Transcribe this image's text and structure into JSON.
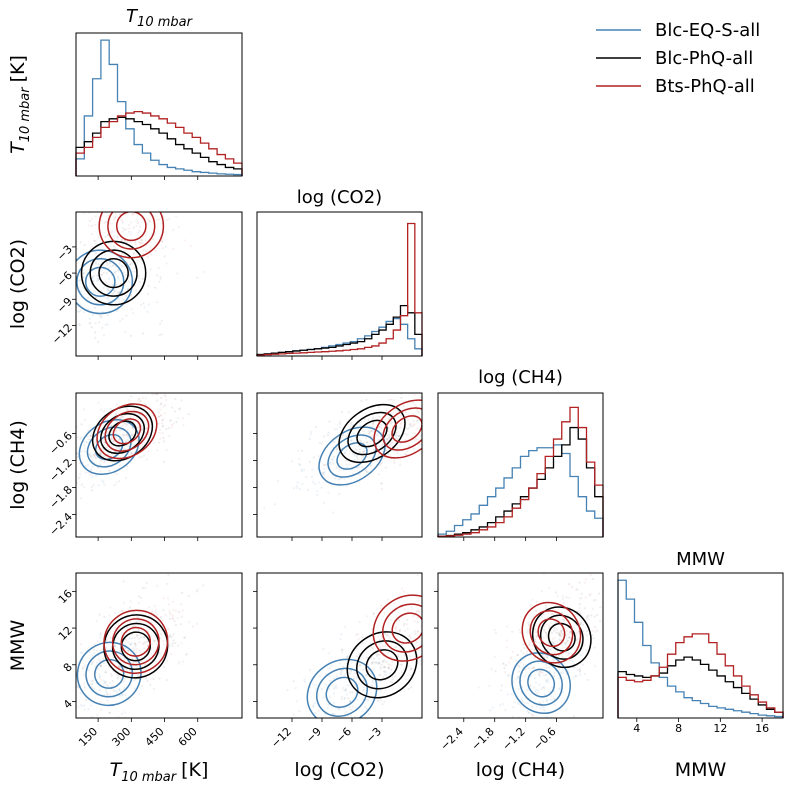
{
  "chart_data": {
    "type": "corner",
    "legend_position": "top-right",
    "series": [
      {
        "name": "Blc-EQ-S-all",
        "color": "#4682b4"
      },
      {
        "name": "Blc-PhQ-all",
        "color": "#000000"
      },
      {
        "name": "Bts-PhQ-all",
        "color": "#b22222"
      }
    ],
    "params": [
      {
        "key": "T",
        "title": "T",
        "sub": "10 mbar",
        "unit": "[K]",
        "range": [
          50,
          800
        ],
        "ticks": [
          150,
          300,
          450,
          600
        ],
        "tick_labels": [
          "150",
          "300",
          "450",
          "600"
        ]
      },
      {
        "key": "co2",
        "title": "log (CO2)",
        "unit": "",
        "range": [
          -15.5,
          1.0
        ],
        "ticks": [
          -12,
          -9,
          -6,
          -3
        ],
        "tick_labels": [
          "−12",
          "−9",
          "−6",
          "−3"
        ]
      },
      {
        "key": "ch4",
        "title": "log (CH4)",
        "unit": "",
        "range": [
          -2.9,
          0.3
        ],
        "ticks": [
          -2.4,
          -1.8,
          -1.2,
          -0.6
        ],
        "tick_labels": [
          "−2.4",
          "−1.8",
          "−1.2",
          "−0.6"
        ]
      },
      {
        "key": "mmw",
        "title": "MMW",
        "unit": "",
        "range": [
          2.2,
          18.0
        ],
        "ticks": [
          4,
          8,
          12,
          16
        ],
        "tick_labels": [
          "4",
          "8",
          "12",
          "16"
        ]
      }
    ],
    "histograms": {
      "T": {
        "Blc-EQ-S-all": [
          0.12,
          0.42,
          0.68,
          0.95,
          0.78,
          0.52,
          0.33,
          0.22,
          0.16,
          0.11,
          0.08,
          0.06,
          0.05,
          0.04,
          0.03,
          0.025,
          0.02,
          0.015,
          0.012,
          0.01
        ],
        "Blc-PhQ-all": [
          0.2,
          0.24,
          0.3,
          0.38,
          0.4,
          0.41,
          0.4,
          0.38,
          0.36,
          0.33,
          0.3,
          0.26,
          0.22,
          0.19,
          0.16,
          0.13,
          0.1,
          0.08,
          0.06,
          0.05
        ],
        "Bts-PhQ-all": [
          0.16,
          0.2,
          0.27,
          0.34,
          0.38,
          0.42,
          0.44,
          0.45,
          0.44,
          0.42,
          0.4,
          0.37,
          0.34,
          0.3,
          0.27,
          0.23,
          0.19,
          0.15,
          0.12,
          0.09
        ]
      },
      "co2": {
        "Blc-EQ-S-all": [
          0.01,
          0.015,
          0.02,
          0.025,
          0.03,
          0.035,
          0.04,
          0.045,
          0.05,
          0.06,
          0.07,
          0.08,
          0.09,
          0.1,
          0.12,
          0.14,
          0.17,
          0.2,
          0.24,
          0.26,
          0.22,
          0.12,
          0.05
        ],
        "Blc-PhQ-all": [
          0.01,
          0.015,
          0.02,
          0.025,
          0.03,
          0.035,
          0.04,
          0.045,
          0.05,
          0.055,
          0.06,
          0.07,
          0.08,
          0.09,
          0.1,
          0.12,
          0.15,
          0.18,
          0.22,
          0.27,
          0.35,
          0.3,
          0.15
        ],
        "Bts-PhQ-all": [
          0.005,
          0.01,
          0.012,
          0.015,
          0.018,
          0.02,
          0.022,
          0.025,
          0.028,
          0.03,
          0.033,
          0.036,
          0.04,
          0.045,
          0.05,
          0.06,
          0.07,
          0.09,
          0.12,
          0.18,
          0.28,
          0.92,
          0.3
        ]
      },
      "ch4": {
        "Blc-EQ-S-all": [
          0.02,
          0.04,
          0.08,
          0.12,
          0.16,
          0.22,
          0.28,
          0.34,
          0.41,
          0.48,
          0.56,
          0.6,
          0.62,
          0.62,
          0.64,
          0.58,
          0.42,
          0.28,
          0.18,
          0.13
        ],
        "Blc-PhQ-all": [
          0.005,
          0.01,
          0.02,
          0.03,
          0.05,
          0.07,
          0.1,
          0.14,
          0.18,
          0.23,
          0.28,
          0.34,
          0.4,
          0.48,
          0.56,
          0.64,
          0.76,
          0.68,
          0.48,
          0.28
        ],
        "Bts-PhQ-all": [
          0.005,
          0.008,
          0.012,
          0.02,
          0.03,
          0.05,
          0.07,
          0.1,
          0.14,
          0.2,
          0.26,
          0.34,
          0.44,
          0.56,
          0.68,
          0.8,
          0.9,
          0.76,
          0.52,
          0.36
        ]
      },
      "mmw": {
        "Blc-EQ-S-all": [
          0.95,
          0.82,
          0.66,
          0.5,
          0.38,
          0.28,
          0.22,
          0.18,
          0.14,
          0.12,
          0.1,
          0.08,
          0.07,
          0.06,
          0.05,
          0.04,
          0.03,
          0.02,
          0.015,
          0.01
        ],
        "Blc-PhQ-all": [
          0.32,
          0.3,
          0.29,
          0.28,
          0.29,
          0.31,
          0.36,
          0.4,
          0.42,
          0.4,
          0.37,
          0.33,
          0.29,
          0.25,
          0.21,
          0.17,
          0.13,
          0.09,
          0.06,
          0.04
        ],
        "Bts-PhQ-all": [
          0.28,
          0.26,
          0.25,
          0.26,
          0.29,
          0.35,
          0.44,
          0.52,
          0.56,
          0.58,
          0.58,
          0.52,
          0.44,
          0.36,
          0.29,
          0.22,
          0.16,
          0.11,
          0.07,
          0.04
        ]
      }
    },
    "contour_centers": {
      "co2|T": {
        "Blc-EQ-S-all": [
          160,
          -7.0
        ],
        "Blc-PhQ-all": [
          220,
          -6.0
        ],
        "Bts-PhQ-all": [
          300,
          -0.6
        ]
      },
      "ch4|T": {
        "Blc-EQ-S-all": [
          200,
          -0.9
        ],
        "Blc-PhQ-all": [
          260,
          -0.6
        ],
        "Bts-PhQ-all": [
          280,
          -0.55
        ]
      },
      "ch4|co2": {
        "Blc-EQ-S-all": [
          -6.0,
          -1.1
        ],
        "Blc-PhQ-all": [
          -4.0,
          -0.6
        ],
        "Bts-PhQ-all": [
          -0.5,
          -0.5
        ]
      },
      "mmw|T": {
        "Blc-EQ-S-all": [
          200,
          7.0
        ],
        "Blc-PhQ-all": [
          320,
          10.0
        ],
        "Bts-PhQ-all": [
          320,
          10.5
        ]
      },
      "mmw|co2": {
        "Blc-EQ-S-all": [
          -7.0,
          5.0
        ],
        "Blc-PhQ-all": [
          -3.0,
          8.0
        ],
        "Bts-PhQ-all": [
          -0.4,
          12.0
        ]
      },
      "mmw|ch4": {
        "Blc-EQ-S-all": [
          -0.9,
          6.0
        ],
        "Blc-PhQ-all": [
          -0.5,
          11.0
        ],
        "Bts-PhQ-all": [
          -0.7,
          11.5
        ]
      }
    }
  }
}
